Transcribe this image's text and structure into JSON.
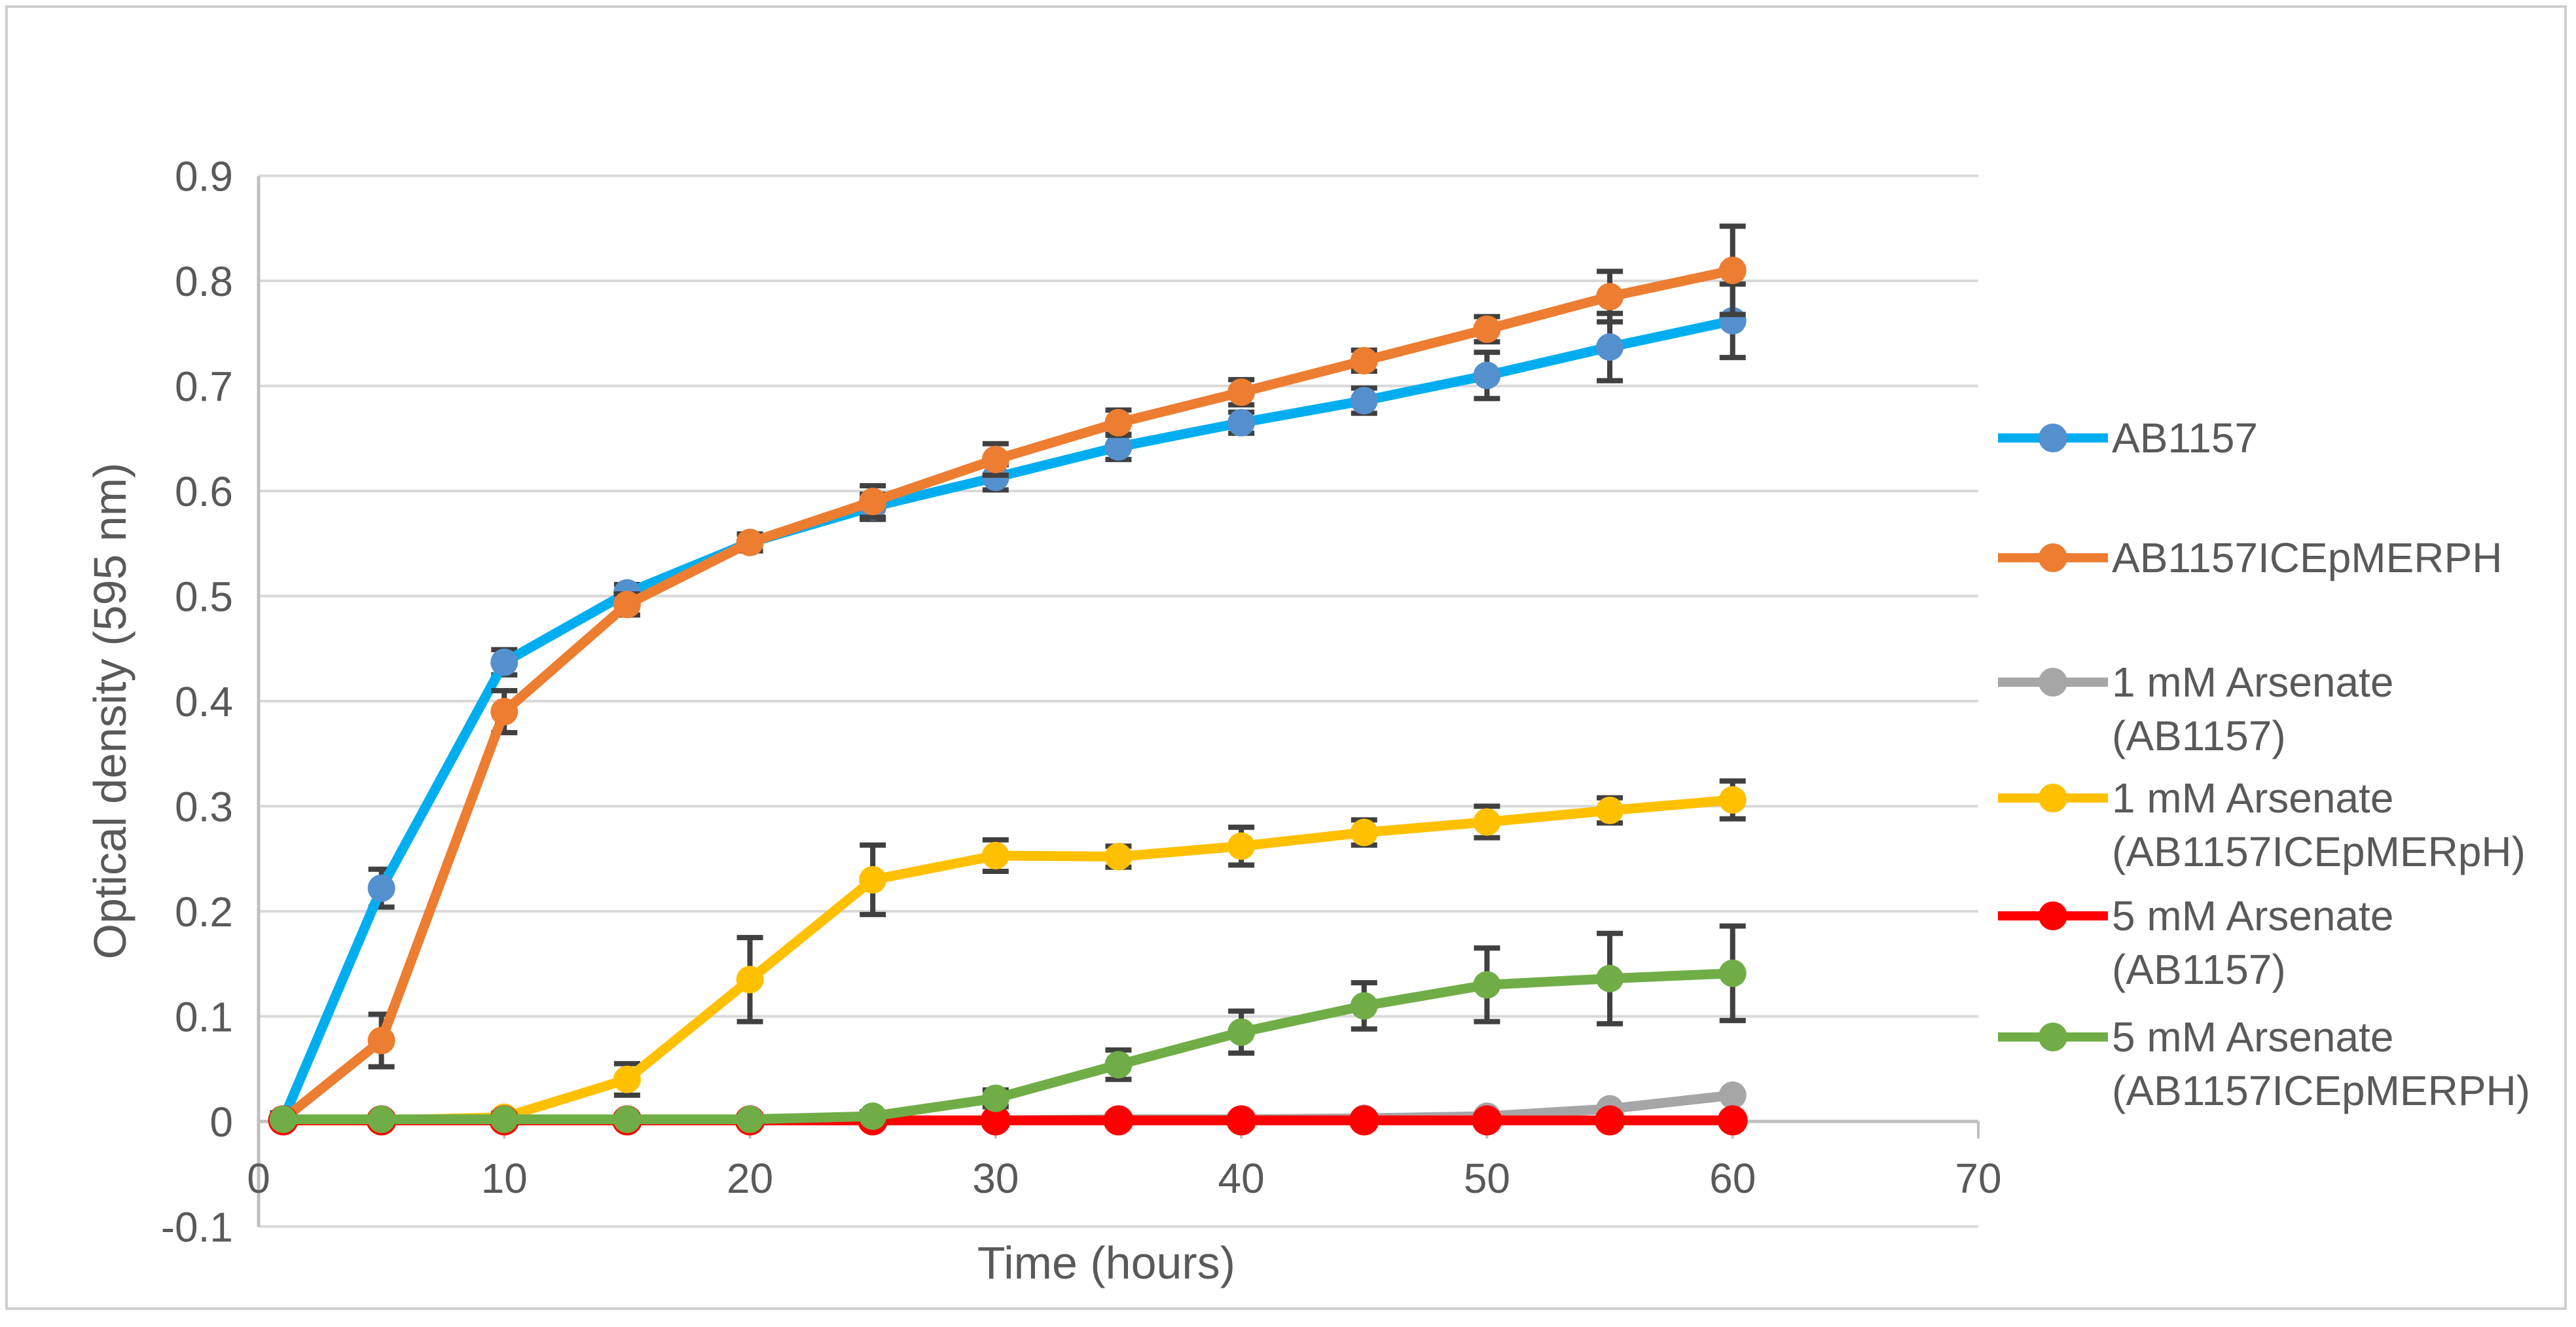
{
  "figure": {
    "background": "#ffffff",
    "frame_color": "#cfcfcf"
  },
  "chart_data": {
    "type": "line",
    "title": "",
    "xlabel": "Time (hours)",
    "ylabel": "Optical density (595 nm)",
    "xlim": [
      0,
      70
    ],
    "ylim": [
      -0.1,
      0.9
    ],
    "x_ticks": [
      0,
      10,
      20,
      30,
      40,
      50,
      60,
      70
    ],
    "y_ticks": [
      -0.1,
      0,
      0.1,
      0.2,
      0.3,
      0.4,
      0.5,
      0.6,
      0.7,
      0.8,
      0.9
    ],
    "y_tick_labels": [
      "-0.1",
      "0",
      "0.1",
      "0.2",
      "0.3",
      "0.4",
      "0.5",
      "0.6",
      "0.7",
      "0.8",
      "0.9"
    ],
    "grid": "horizontal",
    "legend_position": "right",
    "x": [
      1,
      5,
      10,
      15,
      20,
      25,
      30,
      35,
      40,
      45,
      50,
      55,
      60
    ],
    "series": [
      {
        "name": "AB1157",
        "legend_lines": [
          "AB1157"
        ],
        "line_color": "#00AEEF",
        "marker_color": "#5590CE",
        "marker_radius": 21,
        "values": [
          0.002,
          0.222,
          0.437,
          0.503,
          0.551,
          0.585,
          0.613,
          0.642,
          0.665,
          0.686,
          0.71,
          0.737,
          0.762
        ],
        "errors": [
          0.006,
          0.018,
          0.012,
          0.008,
          0.008,
          0.012,
          0.012,
          0.012,
          0.01,
          0.012,
          0.022,
          0.032,
          0.035
        ]
      },
      {
        "name": "AB1157ICEpMERPH",
        "legend_lines": [
          "AB1157ICEpMERPH"
        ],
        "line_color": "#ED7D31",
        "marker_color": "#ED7D31",
        "marker_radius": 21,
        "values": [
          0.002,
          0.077,
          0.39,
          0.492,
          0.551,
          0.59,
          0.63,
          0.665,
          0.694,
          0.724,
          0.754,
          0.785,
          0.81
        ],
        "errors": [
          0.006,
          0.025,
          0.02,
          0.01,
          0.008,
          0.015,
          0.015,
          0.012,
          0.012,
          0.01,
          0.012,
          0.024,
          0.042
        ]
      },
      {
        "name": "1 mM Arsenate (AB1157)",
        "legend_lines": [
          "1 mM Arsenate",
          "(AB1157)"
        ],
        "line_color": "#A6A6A6",
        "marker_color": "#A6A6A6",
        "marker_radius": 21,
        "values": [
          0.001,
          0.001,
          0.001,
          0.001,
          0.001,
          0.001,
          0.001,
          0.002,
          0.002,
          0.003,
          0.005,
          0.012,
          0.025
        ],
        "errors": [
          0,
          0,
          0,
          0,
          0,
          0,
          0,
          0,
          0,
          0,
          0,
          0,
          0
        ]
      },
      {
        "name": "1 mM Arsenate (AB1157ICEpMERpH)",
        "legend_lines": [
          "1 mM Arsenate",
          "(AB1157ICEpMERpH)"
        ],
        "line_color": "#FFC000",
        "marker_color": "#FFC000",
        "marker_radius": 21,
        "values": [
          0.001,
          0.001,
          0.004,
          0.04,
          0.135,
          0.23,
          0.253,
          0.252,
          0.262,
          0.275,
          0.285,
          0.296,
          0.306
        ],
        "errors": [
          0,
          0,
          0.004,
          0.015,
          0.04,
          0.033,
          0.015,
          0.01,
          0.018,
          0.012,
          0.015,
          0.012,
          0.018
        ]
      },
      {
        "name": "5 mM Arsenate (AB1157)",
        "legend_lines": [
          "5 mM Arsenate",
          "(AB1157)"
        ],
        "line_color": "#FF0000",
        "marker_color": "#FF0000",
        "marker_radius": 23,
        "values": [
          0.001,
          0.001,
          0.001,
          0.001,
          0.001,
          0.001,
          0.001,
          0.001,
          0.001,
          0.001,
          0.001,
          0.001,
          0.001
        ],
        "errors": [
          0,
          0,
          0,
          0,
          0,
          0,
          0,
          0,
          0,
          0,
          0,
          0,
          0
        ]
      },
      {
        "name": "5 mM Arsenate (AB1157ICEpMERPH)",
        "legend_lines": [
          "5 mM Arsenate",
          "(AB1157ICEpMERPH)"
        ],
        "line_color": "#70AD47",
        "marker_color": "#70AD47",
        "marker_radius": 21,
        "values": [
          0.002,
          0.002,
          0.002,
          0.002,
          0.002,
          0.005,
          0.022,
          0.054,
          0.085,
          0.11,
          0.13,
          0.136,
          0.141
        ],
        "errors": [
          0,
          0,
          0,
          0,
          0,
          0.004,
          0.008,
          0.014,
          0.02,
          0.022,
          0.035,
          0.043,
          0.045
        ]
      }
    ],
    "style": {
      "grid_color": "#D9D9D9",
      "axis_color": "#BFBFBF",
      "tick_text_color": "#595959",
      "error_bar_color": "#404040"
    }
  }
}
